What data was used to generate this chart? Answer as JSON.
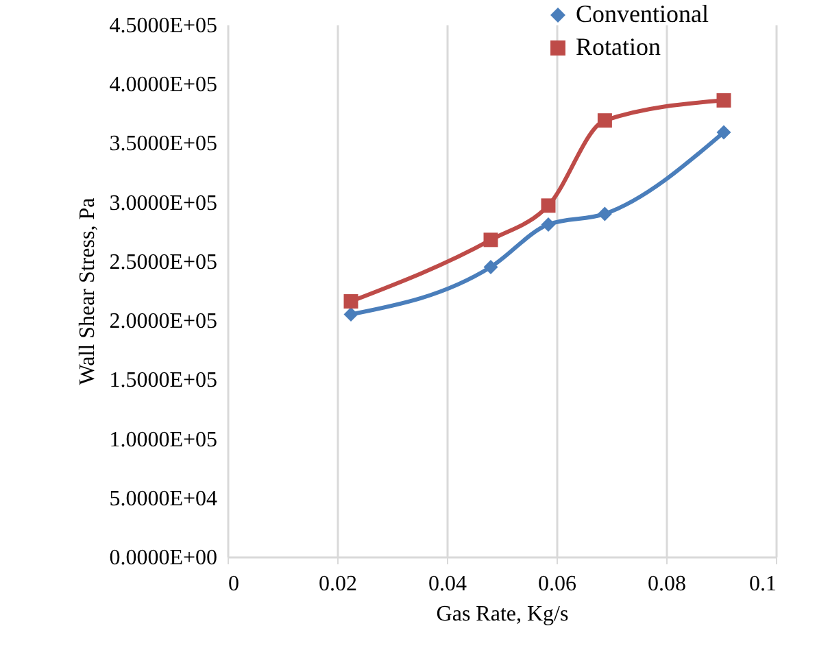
{
  "chart_data": {
    "type": "line",
    "xlabel": "Gas Rate, Kg/s",
    "ylabel": "Wall Shear Stress, Pa",
    "xlim": [
      0,
      0.1
    ],
    "xticks": [
      0,
      0.02,
      0.04,
      0.06,
      0.08,
      0.1
    ],
    "ylim": [
      0,
      450000
    ],
    "yticks": [
      {
        "value": 0,
        "label": "0.0000E+00"
      },
      {
        "value": 50000,
        "label": "5.0000E+04"
      },
      {
        "value": 100000,
        "label": "1.0000E+05"
      },
      {
        "value": 150000,
        "label": "1.5000E+05"
      },
      {
        "value": 200000,
        "label": "2.0000E+05"
      },
      {
        "value": 250000,
        "label": "2.5000E+05"
      },
      {
        "value": 300000,
        "label": "3.0000E+05"
      },
      {
        "value": 350000,
        "label": "3.5000E+05"
      },
      {
        "value": 400000,
        "label": "4.0000E+05"
      },
      {
        "value": 450000,
        "label": "4.5000E+05"
      }
    ],
    "grid": "x",
    "legend": "top right",
    "line_style": "solid",
    "series": [
      {
        "name": "Conventional",
        "color": "#4a7ebb",
        "marker": "diamond",
        "x": [
          0.0225,
          0.048,
          0.0585,
          0.0688,
          0.0905
        ],
        "values": [
          205000,
          245000,
          281000,
          290000,
          359000
        ]
      },
      {
        "name": "Rotation",
        "color": "#be4b48",
        "marker": "square",
        "x": [
          0.0225,
          0.048,
          0.0585,
          0.0688,
          0.0905
        ],
        "values": [
          216000,
          268000,
          297000,
          369000,
          386000
        ]
      }
    ]
  }
}
